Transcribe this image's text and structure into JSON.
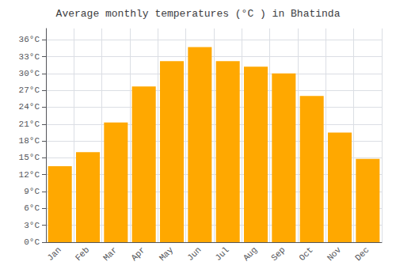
{
  "chart_data": {
    "type": "bar",
    "title": "Average monthly temperatures (°C ) in Bhatinda",
    "categories": [
      "Jan",
      "Feb",
      "Mar",
      "Apr",
      "May",
      "Jun",
      "Jul",
      "Aug",
      "Sep",
      "Oct",
      "Nov",
      "Dec"
    ],
    "values": [
      13.5,
      16.0,
      21.3,
      27.7,
      32.2,
      34.7,
      32.2,
      31.2,
      30.0,
      26.0,
      19.5,
      14.8
    ],
    "color": "#FFA800",
    "ylim": [
      0,
      38
    ],
    "yticks": [
      {
        "value": 0,
        "label": "0°C"
      },
      {
        "value": 3,
        "label": "3°C"
      },
      {
        "value": 6,
        "label": "6°C"
      },
      {
        "value": 9,
        "label": "9°C"
      },
      {
        "value": 12,
        "label": "12°C"
      },
      {
        "value": 15,
        "label": "15°C"
      },
      {
        "value": 18,
        "label": "18°C"
      },
      {
        "value": 21,
        "label": "21°C"
      },
      {
        "value": 24,
        "label": "24°C"
      },
      {
        "value": 27,
        "label": "27°C"
      },
      {
        "value": 30,
        "label": "30°C"
      },
      {
        "value": 33,
        "label": "33°C"
      },
      {
        "value": 36,
        "label": "36°C"
      }
    ],
    "grid": true
  }
}
